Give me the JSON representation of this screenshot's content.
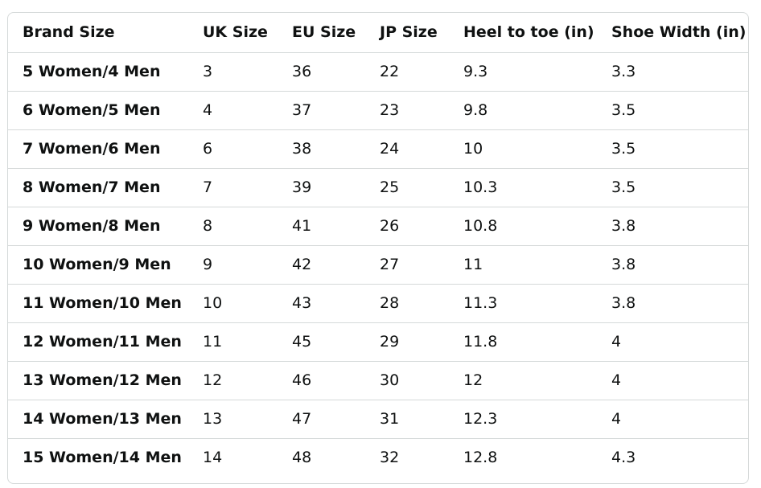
{
  "table": {
    "headers": [
      "Brand Size",
      "UK Size",
      "EU Size",
      "JP Size",
      "Heel to toe (in)",
      "Shoe Width (in)"
    ],
    "rows": [
      [
        "5 Women/4 Men",
        "3",
        "36",
        "22",
        "9.3",
        "3.3"
      ],
      [
        "6 Women/5 Men",
        "4",
        "37",
        "23",
        "9.8",
        "3.5"
      ],
      [
        "7 Women/6 Men",
        "6",
        "38",
        "24",
        "10",
        "3.5"
      ],
      [
        "8 Women/7 Men",
        "7",
        "39",
        "25",
        "10.3",
        "3.5"
      ],
      [
        "9 Women/8 Men",
        "8",
        "41",
        "26",
        "10.8",
        "3.8"
      ],
      [
        "10 Women/9 Men",
        "9",
        "42",
        "27",
        "11",
        "3.8"
      ],
      [
        "11 Women/10 Men",
        "10",
        "43",
        "28",
        "11.3",
        "3.8"
      ],
      [
        "12 Women/11 Men",
        "11",
        "45",
        "29",
        "11.8",
        "4"
      ],
      [
        "13 Women/12 Men",
        "12",
        "46",
        "30",
        "12",
        "4"
      ],
      [
        "14 Women/13 Men",
        "13",
        "47",
        "31",
        "12.3",
        "4"
      ],
      [
        "15 Women/14 Men",
        "14",
        "48",
        "32",
        "12.8",
        "4.3"
      ]
    ]
  }
}
